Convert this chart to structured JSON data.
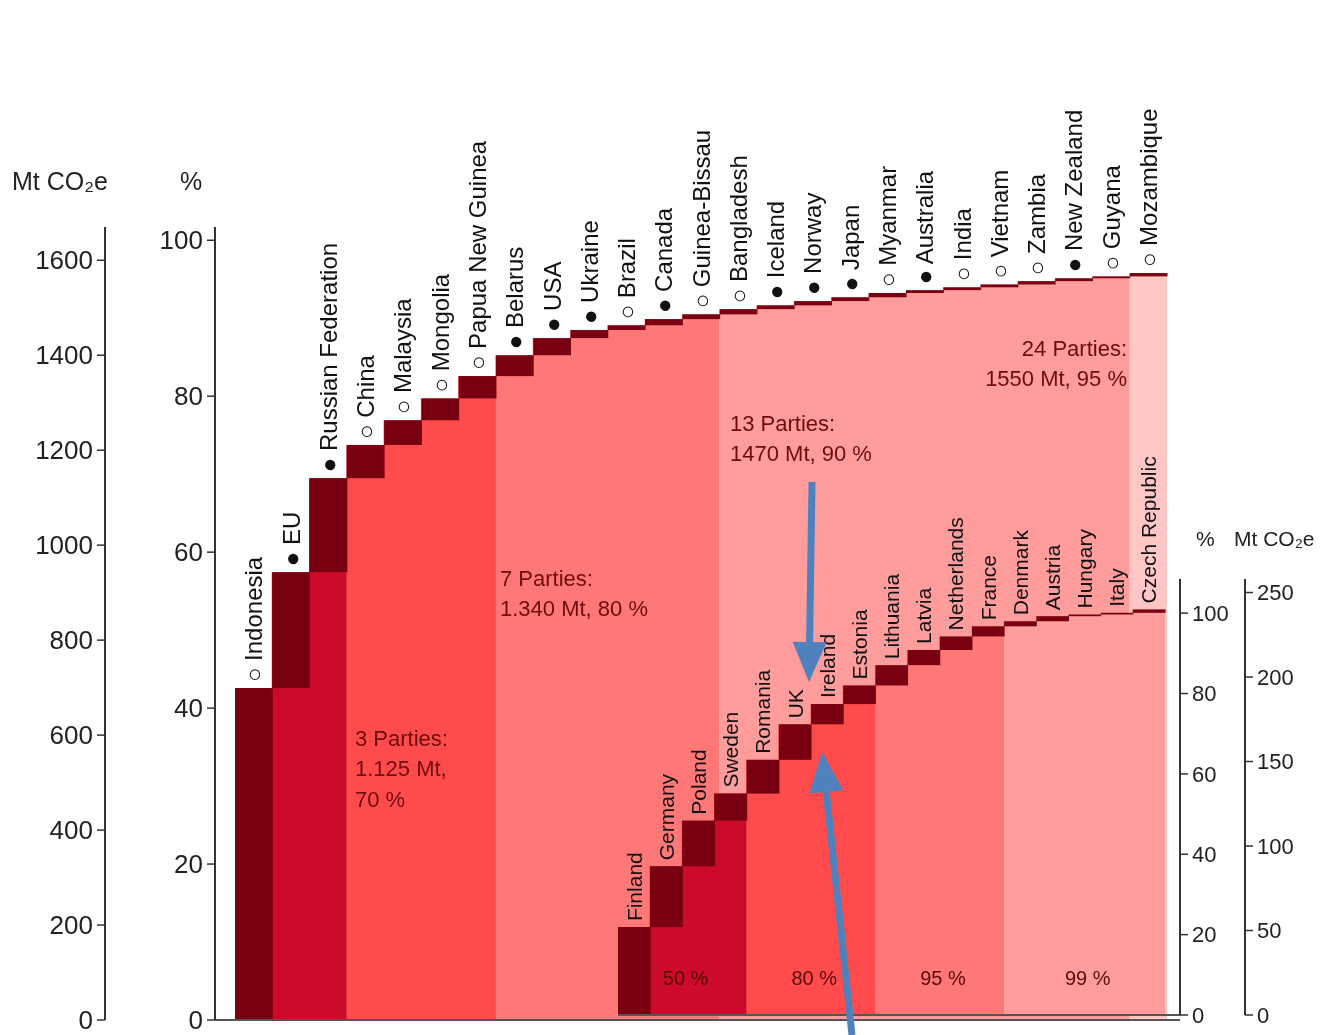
{
  "chart_data": [
    {
      "type": "bar",
      "ylabel": "Mt CO₂e",
      "y2label": "%",
      "categories": [
        "○ Indonesia",
        "● EU",
        "● Russian Federation",
        "○ China",
        "○ Malaysia",
        "○ Mongolia",
        "○ Papua New Guinea",
        "● Belarus",
        "● USA",
        "● Ukraine",
        "○ Brazil",
        "● Canada",
        "○ Guinea-Bissau",
        "○ Bangladesh",
        "● Iceland",
        "● Norway",
        "● Japan",
        "○ Myanmar",
        "● Australia",
        "○ India",
        "○ Vietnam",
        "○ Zambia",
        "● New Zealand",
        "○ Guyana",
        "○ Mozambique"
      ],
      "values": [
        699,
        244,
        198,
        70,
        52,
        46,
        47,
        44,
        36,
        17,
        10,
        13,
        10,
        11,
        8,
        9,
        8,
        9,
        6,
        6,
        6,
        7,
        6,
        4,
        7
      ],
      "base": [
        0,
        699,
        943,
        1141,
        1211,
        1263,
        1309,
        1356,
        1400,
        1436,
        1453,
        1463,
        1476,
        1486,
        1497,
        1505,
        1514,
        1522,
        1531,
        1537,
        1543,
        1549,
        1556,
        1562,
        1566
      ],
      "color": "#780010",
      "ylim": [
        0,
        1670
      ],
      "yticks": [
        0,
        200,
        400,
        600,
        800,
        1000,
        1200,
        1400,
        1600
      ],
      "y2lim": [
        0,
        101.7
      ],
      "y2ticks": [
        0,
        20,
        40,
        60,
        80,
        100
      ],
      "bands": [
        {
          "axis": "x",
          "from": "○ Indonesia",
          "to": "● Russian Federation",
          "color": "#cc0a2a"
        },
        {
          "axis": "x",
          "from": "○ China",
          "to": "○ Papua New Guinea",
          "color": "#ff4b4b"
        },
        {
          "axis": "x",
          "from": "● Belarus",
          "to": "○ Guinea-Bissau",
          "color": "#ff7878"
        },
        {
          "axis": "x",
          "from": "○ Bangladesh",
          "to": "○ Guyana",
          "color": "#ff9c9c"
        },
        {
          "axis": "x",
          "from": "○ Mozambique",
          "to": "○ Mozambique",
          "color": "#ffc6c6"
        }
      ],
      "annotations": [
        "3 Parties:\n1.125 Mt,\n70 %",
        "7 Parties:\n1.340 Mt, 80 %",
        "13 Parties:\n1470 Mt, 90 %",
        "24 Parties:\n1550 Mt, 95 %"
      ]
    },
    {
      "type": "bar",
      "ylabel": "Mt CO₂e",
      "y2label": "%",
      "categories": [
        "Finland",
        "Germany",
        "Poland",
        "Sweden",
        "Romania",
        "UK",
        "Ireland",
        "Estonia",
        "Lithuania",
        "Latvia",
        "Netherlands",
        "France",
        "Denmark",
        "Austria",
        "Hungary",
        "Italy",
        "Czech Republic"
      ],
      "values": [
        52,
        36,
        27,
        16,
        20,
        21,
        12,
        11,
        12,
        9,
        8,
        6,
        3,
        3,
        1,
        1,
        2
      ],
      "base": [
        0,
        52,
        88,
        115,
        131,
        151,
        172,
        184,
        195,
        207,
        216,
        224,
        230,
        233,
        236,
        237,
        238
      ],
      "color": "#780010",
      "ylim": [
        0,
        258
      ],
      "yticks": [
        0,
        50,
        100,
        150,
        200,
        250
      ],
      "y2lim": [
        0,
        108.5
      ],
      "y2ticks": [
        0,
        20,
        40,
        60,
        80,
        100
      ],
      "bands": [
        {
          "axis": "x",
          "from": "Finland",
          "to": "Sweden",
          "color": "#cc0a2a",
          "label": "50 %"
        },
        {
          "axis": "x",
          "from": "Romania",
          "to": "Estonia",
          "color": "#ff4b4b",
          "label": "80 %"
        },
        {
          "axis": "x",
          "from": "Lithuania",
          "to": "France",
          "color": "#ff7878",
          "label": "95 %"
        },
        {
          "axis": "x",
          "from": "Denmark",
          "to": "Czech Republic",
          "color": "#ff9c9c",
          "label": "99 %"
        }
      ]
    }
  ]
}
